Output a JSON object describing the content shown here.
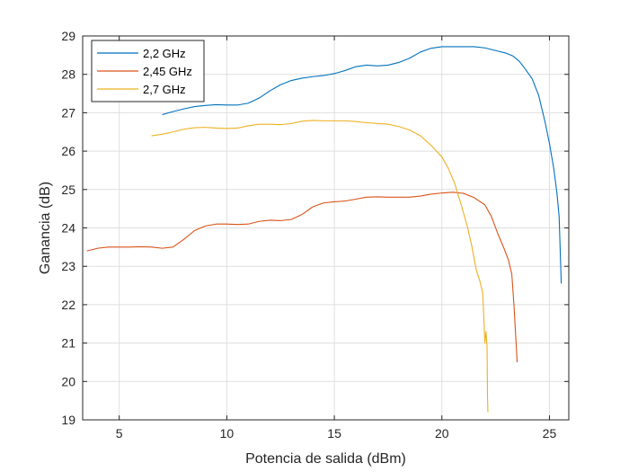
{
  "chart_data": {
    "type": "line",
    "xlabel": "Potencia de salida (dBm)",
    "ylabel": "Ganancia (dB)",
    "xlim": [
      3.3,
      25.9
    ],
    "ylim": [
      19,
      29
    ],
    "xticks": [
      5,
      10,
      15,
      20,
      25
    ],
    "yticks": [
      19,
      20,
      21,
      22,
      23,
      24,
      25,
      26,
      27,
      28,
      29
    ],
    "grid": true,
    "legend": "top-left",
    "series": [
      {
        "name": "2,2 GHz",
        "color": "#0072BD",
        "x": [
          7.0,
          7.5,
          8.0,
          8.5,
          9.0,
          9.5,
          10.0,
          10.5,
          11.0,
          11.5,
          12.0,
          12.5,
          13.0,
          13.5,
          14.0,
          14.5,
          15.0,
          15.5,
          16.0,
          16.5,
          17.0,
          17.5,
          18.0,
          18.5,
          19.0,
          19.5,
          20.0,
          20.5,
          21.0,
          21.5,
          22.0,
          22.5,
          23.0,
          23.3,
          23.6,
          23.9,
          24.2,
          24.5,
          24.8,
          25.0,
          25.2,
          25.35,
          25.45,
          25.55
        ],
        "y": [
          26.95,
          27.03,
          27.1,
          27.16,
          27.19,
          27.21,
          27.2,
          27.2,
          27.25,
          27.38,
          27.57,
          27.73,
          27.84,
          27.9,
          27.94,
          27.97,
          28.02,
          28.1,
          28.2,
          28.24,
          28.22,
          28.24,
          28.31,
          28.42,
          28.58,
          28.68,
          28.72,
          28.72,
          28.72,
          28.72,
          28.69,
          28.62,
          28.55,
          28.48,
          28.34,
          28.12,
          27.88,
          27.45,
          26.75,
          26.2,
          25.55,
          24.9,
          24.3,
          22.55
        ]
      },
      {
        "name": "2,45 GHz",
        "color": "#D95319",
        "x": [
          3.5,
          4.0,
          4.5,
          5.0,
          5.5,
          6.0,
          6.5,
          7.0,
          7.5,
          8.0,
          8.5,
          9.0,
          9.5,
          10.0,
          10.5,
          11.0,
          11.5,
          12.0,
          12.5,
          13.0,
          13.5,
          14.0,
          14.5,
          15.0,
          15.5,
          16.0,
          16.5,
          17.0,
          17.5,
          18.0,
          18.5,
          19.0,
          19.5,
          20.0,
          20.5,
          21.0,
          21.5,
          22.0,
          22.3,
          22.6,
          22.9,
          23.1,
          23.25,
          23.35,
          23.45,
          23.5
        ],
        "y": [
          23.4,
          23.47,
          23.5,
          23.5,
          23.5,
          23.51,
          23.5,
          23.47,
          23.5,
          23.7,
          23.93,
          24.05,
          24.1,
          24.1,
          24.09,
          24.1,
          24.17,
          24.2,
          24.19,
          24.22,
          24.35,
          24.55,
          24.65,
          24.68,
          24.7,
          24.75,
          24.8,
          24.81,
          24.8,
          24.8,
          24.8,
          24.83,
          24.88,
          24.91,
          24.93,
          24.9,
          24.79,
          24.6,
          24.3,
          23.85,
          23.45,
          23.15,
          22.8,
          22.0,
          21.0,
          20.5
        ]
      },
      {
        "name": "2,7 GHz",
        "color": "#EDB120",
        "x": [
          6.5,
          7.0,
          7.5,
          8.0,
          8.5,
          9.0,
          9.5,
          10.0,
          10.5,
          11.0,
          11.5,
          12.0,
          12.5,
          13.0,
          13.5,
          14.0,
          14.5,
          15.0,
          15.5,
          16.0,
          16.5,
          17.0,
          17.5,
          18.0,
          18.5,
          19.0,
          19.5,
          20.0,
          20.3,
          20.6,
          20.9,
          21.2,
          21.4,
          21.6,
          21.75,
          21.9,
          22.0,
          22.05,
          22.1,
          22.12,
          22.14
        ],
        "y": [
          26.4,
          26.44,
          26.5,
          26.57,
          26.61,
          26.62,
          26.6,
          26.59,
          26.6,
          26.66,
          26.7,
          26.7,
          26.69,
          26.72,
          26.78,
          26.8,
          26.79,
          26.79,
          26.79,
          26.77,
          26.74,
          26.72,
          26.7,
          26.64,
          26.55,
          26.4,
          26.15,
          25.85,
          25.55,
          25.15,
          24.6,
          24.0,
          23.5,
          22.9,
          22.65,
          22.3,
          21.0,
          21.3,
          20.9,
          19.6,
          19.2
        ]
      }
    ]
  }
}
